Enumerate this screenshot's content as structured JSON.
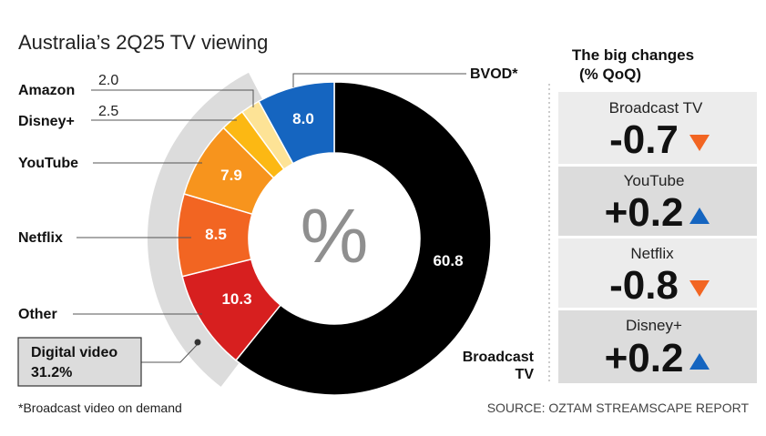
{
  "title": "Australia’s 2Q25 TV viewing",
  "center_symbol": "%",
  "chart_data": {
    "type": "pie",
    "segments": [
      {
        "name": "Broadcast TV",
        "value": 60.8,
        "value_label": "60.8",
        "color": "#000000",
        "label_line1": "Broadcast",
        "label_line2": "TV"
      },
      {
        "name": "Other",
        "value": 10.3,
        "value_label": "10.3",
        "color": "#d71f1f"
      },
      {
        "name": "Netflix",
        "value": 8.5,
        "value_label": "8.5",
        "color": "#f26522"
      },
      {
        "name": "YouTube",
        "value": 7.9,
        "value_label": "7.9",
        "color": "#f7941d"
      },
      {
        "name": "Disney+",
        "value": 2.5,
        "value_label": "2.5",
        "color": "#fcb813"
      },
      {
        "name": "Amazon",
        "value": 2.0,
        "value_label": "2.0",
        "color": "#fde396"
      },
      {
        "name": "BVOD*",
        "value": 8.0,
        "value_label": "8.0",
        "color": "#1565c0"
      }
    ],
    "digital_video": {
      "label": "Digital video",
      "value_label": "31.2%"
    },
    "colors": {
      "digital_band": "#dcdcdc",
      "center_text": "#8f8f8f"
    }
  },
  "changes_panel": {
    "title_line1": "The big changes",
    "title_line2": "(% QoQ)",
    "items": [
      {
        "name": "Broadcast TV",
        "value": "-0.7",
        "direction": "down"
      },
      {
        "name": "YouTube",
        "value": "+0.2",
        "direction": "up"
      },
      {
        "name": "Netflix",
        "value": "-0.8",
        "direction": "down"
      },
      {
        "name": "Disney+",
        "value": "+0.2",
        "direction": "up"
      }
    ],
    "colors": {
      "up": "#1565c0",
      "down": "#f26522",
      "row_light": "#ececec",
      "row_dark": "#dcdcdc"
    }
  },
  "footnote": "*Broadcast video on demand",
  "source": "SOURCE: OZTAM STREAMSCAPE REPORT"
}
